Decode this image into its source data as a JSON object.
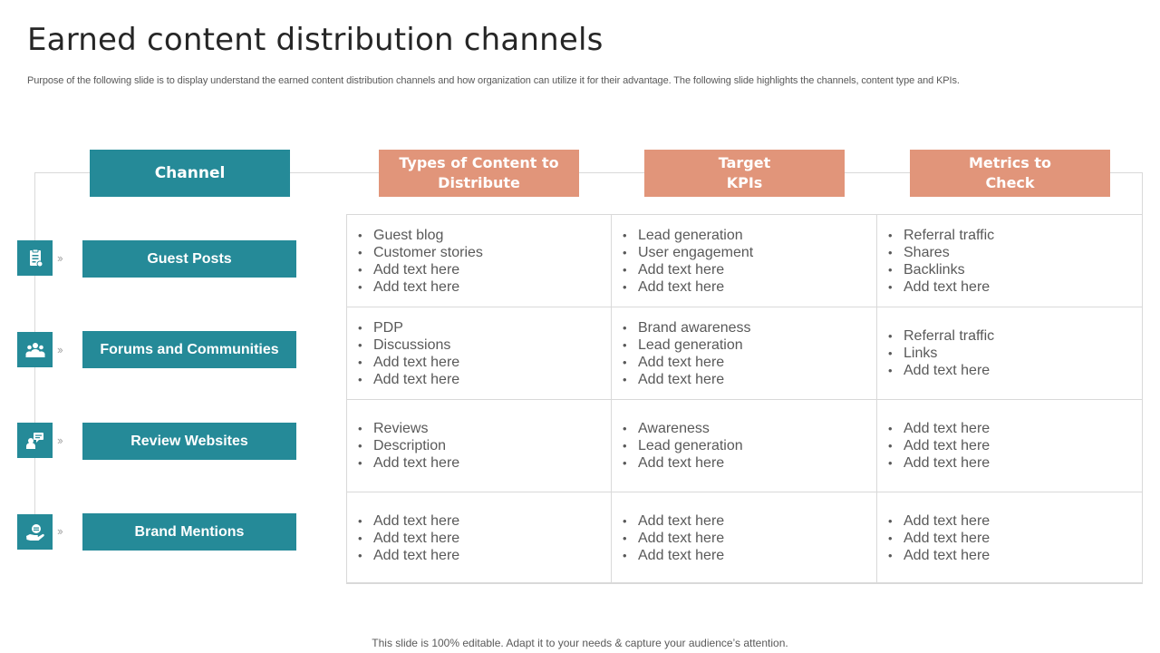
{
  "title": "Earned content distribution channels",
  "subtitle": "Purpose of the following slide is to display understand the earned content distribution channels and how organization can utilize it for their advantage. The following slide highlights the channels, content type and KPIs.",
  "headers": {
    "channel": "Channel",
    "types": "Types of Content to\nDistribute",
    "kpis": "Target\nKPIs",
    "metrics": "Metrics to\nCheck"
  },
  "arrow": "››",
  "rows": [
    {
      "label": "Guest Posts",
      "icon": "document-list-icon",
      "types": [
        "Guest blog",
        "Customer stories",
        "Add text here",
        "Add text here"
      ],
      "kpis": [
        "Lead generation",
        "User engagement",
        "Add text here",
        "Add text here"
      ],
      "metrics": [
        "Referral traffic",
        "Shares",
        "Backlinks",
        "Add text here"
      ]
    },
    {
      "label": "Forums and Communities",
      "icon": "people-group-icon",
      "types": [
        "PDP",
        "Discussions",
        "Add text here",
        "Add text here"
      ],
      "kpis": [
        "Brand awareness",
        "Lead generation",
        "Add text here",
        "Add text here"
      ],
      "metrics": [
        "Referral traffic",
        "Links",
        "Add text here"
      ]
    },
    {
      "label": "Review Websites",
      "icon": "review-chat-icon",
      "types": [
        "Reviews",
        "Description",
        "Add text here"
      ],
      "kpis": [
        "Awareness",
        "Lead generation",
        "Add text here"
      ],
      "metrics": [
        "Add text here",
        "Add text here",
        "Add text here"
      ]
    },
    {
      "label": "Brand Mentions",
      "icon": "hand-badge-icon",
      "types": [
        "Add text here",
        "Add text here",
        "Add text here"
      ],
      "kpis": [
        "Add text here",
        "Add text here",
        "Add text here"
      ],
      "metrics": [
        "Add text here",
        "Add text here",
        "Add text here"
      ]
    }
  ],
  "footer": "This slide is 100% editable. Adapt it to your needs & capture your audience’s attention.",
  "colors": {
    "teal": "#258a98",
    "salmon": "#e1957a",
    "grid": "#d9d9d9"
  }
}
